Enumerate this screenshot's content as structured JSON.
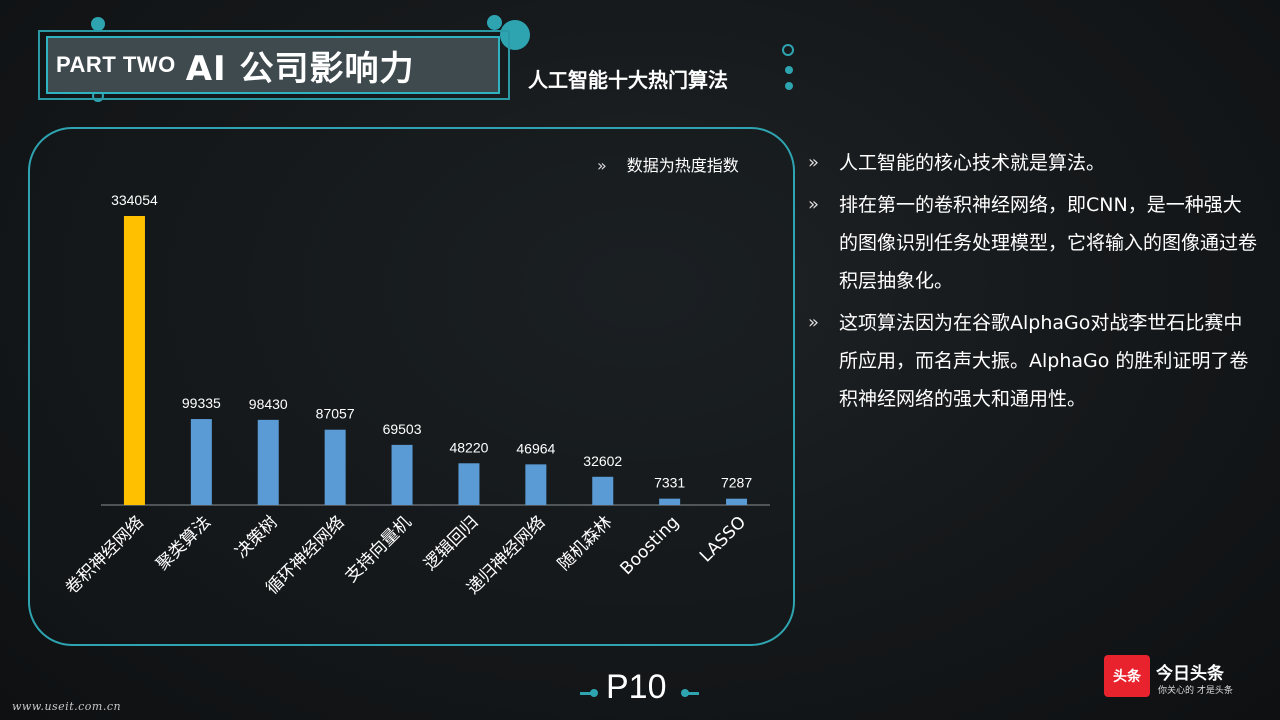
{
  "header": {
    "part_label": "PART TWO",
    "part_title": "AI 公司影响力",
    "subtitle": "人工智能十大热门算法"
  },
  "chart_note": "数据为热度指数",
  "chart_data": {
    "type": "bar",
    "categories": [
      "卷积神经网络",
      "聚类算法",
      "决策树",
      "循环神经网络",
      "支持向量机",
      "逻辑回归",
      "递归神经网络",
      "随机森林",
      "Boosting",
      "LASSO"
    ],
    "values": [
      334054,
      99335,
      98430,
      87057,
      69503,
      48220,
      46964,
      32602,
      7331,
      7287
    ],
    "data_labels": [
      "334054",
      "99335",
      "98430",
      "87057",
      "69503",
      "48220",
      "46964",
      "32602",
      "7331",
      "7287"
    ],
    "highlight_index": 0,
    "colors": {
      "highlight": "#ffc000",
      "default": "#5b9bd5",
      "axis": "#8a8f93"
    },
    "ylim": [
      0,
      334054
    ],
    "title": "",
    "xlabel": "",
    "ylabel": ""
  },
  "bullets": [
    {
      "text": "人工智能的核心技术就是算法。"
    },
    {
      "text": "排在第一的卷积神经网络，即CNN，是一种强大的图像识别任务处理模型，它将输入的图像通过卷积层抽象化。"
    },
    {
      "text": "这项算法因为在谷歌AlphaGo对战李世石比赛中所应用，而名声大振。AlphaGo 的胜利证明了卷积神经网络的强大和通用性。"
    }
  ],
  "bullet_marker": "»",
  "footer": {
    "page": "P10",
    "url": "www.useit.com.cn",
    "logo_mark": "头条",
    "logo_name": "今日头条",
    "logo_slogan": "你关心的 才是头条"
  },
  "theme": {
    "accent": "#2ea4b1",
    "title_bg": "#3f4a4f"
  }
}
